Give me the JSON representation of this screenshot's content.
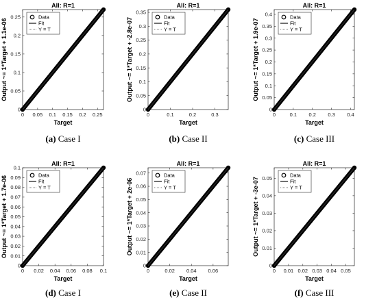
{
  "chart_data": [
    {
      "type": "scatter",
      "title": "All: R=1",
      "xlabel": "Target",
      "ylabel": "Output ~= 1*Target + 1.1e-06",
      "xlim": [
        0,
        0.27
      ],
      "ylim": [
        0,
        0.27
      ],
      "xticks": [
        "0",
        "0.05",
        "0.1",
        "0.15",
        "0.2",
        "0.25"
      ],
      "yticks": [
        "0",
        "0.05",
        "0.1",
        "0.15",
        "0.2",
        "0.25"
      ],
      "x": [
        0,
        0.27
      ],
      "y": [
        0,
        0.27
      ],
      "fit": {
        "slope": 1,
        "intercept": 1.1e-06
      },
      "legend": [
        "Data",
        "Fit",
        "Y = T"
      ],
      "legend_position": "top-left",
      "caption_label": "(a)",
      "caption_text": "Case I"
    },
    {
      "type": "scatter",
      "title": "All: R=1",
      "xlabel": "Target",
      "ylabel": "Output ~= 1*Target + -2.8e-07",
      "xlim": [
        0,
        0.36
      ],
      "ylim": [
        0,
        0.36
      ],
      "xticks": [
        "0",
        "0.1",
        "0.2",
        "0.3"
      ],
      "yticks": [
        "0",
        "0.05",
        "0.1",
        "0.15",
        "0.2",
        "0.25",
        "0.3",
        "0.35"
      ],
      "x": [
        0,
        0.36
      ],
      "y": [
        0,
        0.36
      ],
      "fit": {
        "slope": 1,
        "intercept": -2.8e-07
      },
      "legend": [
        "Data",
        "Fit",
        "Y = T"
      ],
      "legend_position": "top-left",
      "caption_label": "(b)",
      "caption_text": "Case II"
    },
    {
      "type": "scatter",
      "title": "All: R=1",
      "xlabel": "Target",
      "ylabel": "Output ~= 1*Target + 1.9e-07",
      "xlim": [
        0,
        0.42
      ],
      "ylim": [
        0,
        0.42
      ],
      "xticks": [
        "0",
        "0.1",
        "0.2",
        "0.3",
        "0.4"
      ],
      "yticks": [
        "0",
        "0.05",
        "0.1",
        "0.15",
        "0.2",
        "0.25",
        "0.3",
        "0.35",
        "0.4"
      ],
      "x": [
        0,
        0.42
      ],
      "y": [
        0,
        0.42
      ],
      "fit": {
        "slope": 1,
        "intercept": 1.9e-07
      },
      "legend": [
        "Data",
        "Fit",
        "Y = T"
      ],
      "legend_position": "top-left",
      "caption_label": "(c)",
      "caption_text": "Case III"
    },
    {
      "type": "scatter",
      "title": "All: R=1",
      "xlabel": "Target",
      "ylabel": "Output ~= 1*Target + 1.7e-06",
      "xlim": [
        0,
        0.1
      ],
      "ylim": [
        0,
        0.1
      ],
      "xticks": [
        "0",
        "0.02",
        "0.04",
        "0.06",
        "0.08",
        "0.1"
      ],
      "yticks": [
        "0",
        "0.01",
        "0.02",
        "0.03",
        "0.04",
        "0.05",
        "0.06",
        "0.07",
        "0.08",
        "0.09",
        "0.1"
      ],
      "x": [
        0,
        0.1
      ],
      "y": [
        0,
        0.1
      ],
      "fit": {
        "slope": 1,
        "intercept": 1.7e-06
      },
      "legend": [
        "Data",
        "Fit",
        "Y = T"
      ],
      "legend_position": "top-left",
      "caption_label": "(d)",
      "caption_text": "Case I"
    },
    {
      "type": "scatter",
      "title": "All: R=1",
      "xlabel": "Target",
      "ylabel": "Output ~= 1*Target + 2e-06",
      "xlim": [
        0,
        0.074
      ],
      "ylim": [
        0,
        0.074
      ],
      "xticks": [
        "0",
        "0.02",
        "0.04",
        "0.06"
      ],
      "yticks": [
        "0",
        "0.01",
        "0.02",
        "0.03",
        "0.04",
        "0.05",
        "0.06",
        "0.07"
      ],
      "x": [
        0,
        0.074
      ],
      "y": [
        0,
        0.074
      ],
      "fit": {
        "slope": 1,
        "intercept": 2e-06
      },
      "legend": [
        "Data",
        "Fit",
        "Y = T"
      ],
      "legend_position": "top-left",
      "caption_label": "(e)",
      "caption_text": "Case II"
    },
    {
      "type": "scatter",
      "title": "All: R=1",
      "xlabel": "Target",
      "ylabel": "Output ~= 1*Target + -3e-07",
      "xlim": [
        0,
        0.056
      ],
      "ylim": [
        0,
        0.056
      ],
      "xticks": [
        "0",
        "0.01",
        "0.02",
        "0.03",
        "0.04",
        "0.05"
      ],
      "yticks": [
        "0",
        "0.01",
        "0.02",
        "0.03",
        "0.04",
        "0.05"
      ],
      "x": [
        0,
        0.056
      ],
      "y": [
        0,
        0.056
      ],
      "fit": {
        "slope": 1,
        "intercept": -3e-07
      },
      "legend": [
        "Data",
        "Fit",
        "Y = T"
      ],
      "legend_position": "top-left",
      "caption_label": "(f)",
      "caption_text": "Case III"
    }
  ]
}
